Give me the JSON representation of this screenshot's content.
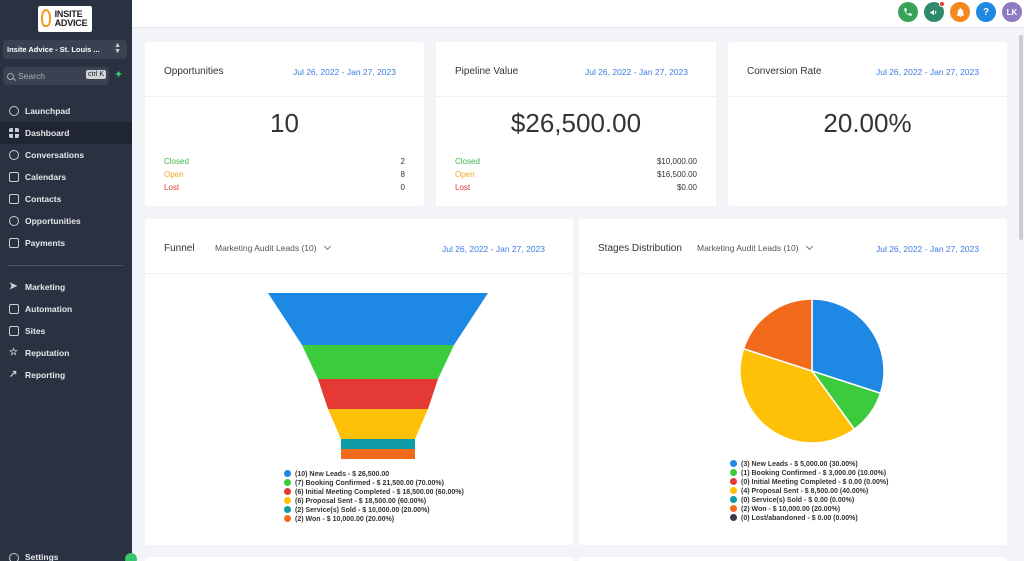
{
  "brand": {
    "logo_line1": "INSITE",
    "logo_line2": "ADVICE"
  },
  "account": {
    "name": "Insite Advice - St. Louis ..."
  },
  "search": {
    "placeholder": "Search",
    "shortcut": "ctrl K"
  },
  "nav": {
    "group1": [
      {
        "label": "Launchpad",
        "icon": "rocket-icon"
      },
      {
        "label": "Dashboard",
        "icon": "dashboard-grid-icon",
        "active": true
      },
      {
        "label": "Conversations",
        "icon": "chat-bubble-icon"
      },
      {
        "label": "Calendars",
        "icon": "calendar-icon"
      },
      {
        "label": "Contacts",
        "icon": "contacts-icon"
      },
      {
        "label": "Opportunities",
        "icon": "opportunities-icon"
      },
      {
        "label": "Payments",
        "icon": "payments-icon"
      }
    ],
    "group2": [
      {
        "label": "Marketing",
        "icon": "send-icon"
      },
      {
        "label": "Automation",
        "icon": "automation-icon"
      },
      {
        "label": "Sites",
        "icon": "sites-icon"
      },
      {
        "label": "Reputation",
        "icon": "star-icon"
      },
      {
        "label": "Reporting",
        "icon": "trend-icon"
      }
    ],
    "settings": "Settings"
  },
  "topbar": {
    "phone_color": "#37a35a",
    "announce_color": "#2f8a6d",
    "bell_color": "#f5891f",
    "help_color": "#1e88e5",
    "help_glyph": "?",
    "avatar_initials": "LK",
    "avatar_color": "#8e7cc3"
  },
  "colors": {
    "closed": "#3bb34a",
    "open": "#f5a623",
    "lost": "#e53935",
    "accent": "#3b7ddd"
  },
  "cards": {
    "opportunities": {
      "title": "Opportunities",
      "date": "Jul 26, 2022 - Jan 27, 2023",
      "value": "10",
      "rows": [
        {
          "label": "Closed",
          "value": "2"
        },
        {
          "label": "Open",
          "value": "8"
        },
        {
          "label": "Lost",
          "value": "0"
        }
      ]
    },
    "pipeline": {
      "title": "Pipeline Value",
      "date": "Jul 26, 2022 - Jan 27, 2023",
      "value": "$26,500.00",
      "rows": [
        {
          "label": "Closed",
          "value": "$10,000.00"
        },
        {
          "label": "Open",
          "value": "$16,500.00"
        },
        {
          "label": "Lost",
          "value": "$0.00"
        }
      ]
    },
    "conversion": {
      "title": "Conversion Rate",
      "date": "Jul 26, 2022 - Jan 27, 2023",
      "value": "20.00%"
    }
  },
  "funnel": {
    "title": "Funnel",
    "pipeline": "Marketing Audit Leads (10)",
    "date": "Jul 26, 2022 - Jan 27, 2023",
    "legend": [
      {
        "text": "(10) New Leads - $ 26,500.00",
        "color": "#1e88e5"
      },
      {
        "text": "(7) Booking Confirmed - $ 21,500.00 (70.00%)",
        "color": "#3ccb3c"
      },
      {
        "text": "(6) Initial Meeting Completed - $ 18,500.00 (60.00%)",
        "color": "#e53935"
      },
      {
        "text": "(6) Proposal Sent - $ 18,500.00 (60.00%)",
        "color": "#ffc107"
      },
      {
        "text": "(2) Service(s) Sold - $ 10,000.00 (20.00%)",
        "color": "#0e9aa7"
      },
      {
        "text": "(2) Won - $ 10,000.00 (20.00%)",
        "color": "#f26b1d"
      }
    ]
  },
  "stages": {
    "title": "Stages Distribution",
    "pipeline": "Marketing Audit Leads (10)",
    "date": "Jul 26, 2022 - Jan 27, 2023",
    "legend": [
      {
        "text": "(3) New Leads - $ 5,000.00 (30.00%)",
        "color": "#1e88e5"
      },
      {
        "text": "(1) Booking Confirmed - $ 3,000.00 (10.00%)",
        "color": "#3ccb3c"
      },
      {
        "text": "(0) Initial Meeting Completed - $ 0.00 (0.00%)",
        "color": "#e53935"
      },
      {
        "text": "(4) Proposal Sent - $ 8,500.00 (40.00%)",
        "color": "#ffc107"
      },
      {
        "text": "(0) Service(s) Sold - $ 0.00 (0.00%)",
        "color": "#0e9aa7"
      },
      {
        "text": "(2) Won - $ 10,000.00 (20.00%)",
        "color": "#f26b1d"
      },
      {
        "text": "(0) Lost/abandoned - $ 0.00 (0.00%)",
        "color": "#333a45"
      }
    ]
  },
  "chart_data": [
    {
      "type": "bar",
      "categories": [
        "New Leads",
        "Booking Confirmed",
        "Initial Meeting Completed",
        "Proposal Sent",
        "Service(s) Sold",
        "Won"
      ],
      "values": [
        10,
        7,
        6,
        6,
        2,
        2
      ]
    },
    {
      "type": "pie",
      "categories": [
        "New Leads",
        "Booking Confirmed",
        "Initial Meeting Completed",
        "Proposal Sent",
        "Service(s) Sold",
        "Won",
        "Lost/abandoned"
      ],
      "values": [
        3,
        1,
        0,
        4,
        0,
        2,
        0
      ],
      "colors": [
        "#1e88e5",
        "#3ccb3c",
        "#e53935",
        "#ffc107",
        "#0e9aa7",
        "#f26b1d",
        "#333a45"
      ]
    }
  ]
}
